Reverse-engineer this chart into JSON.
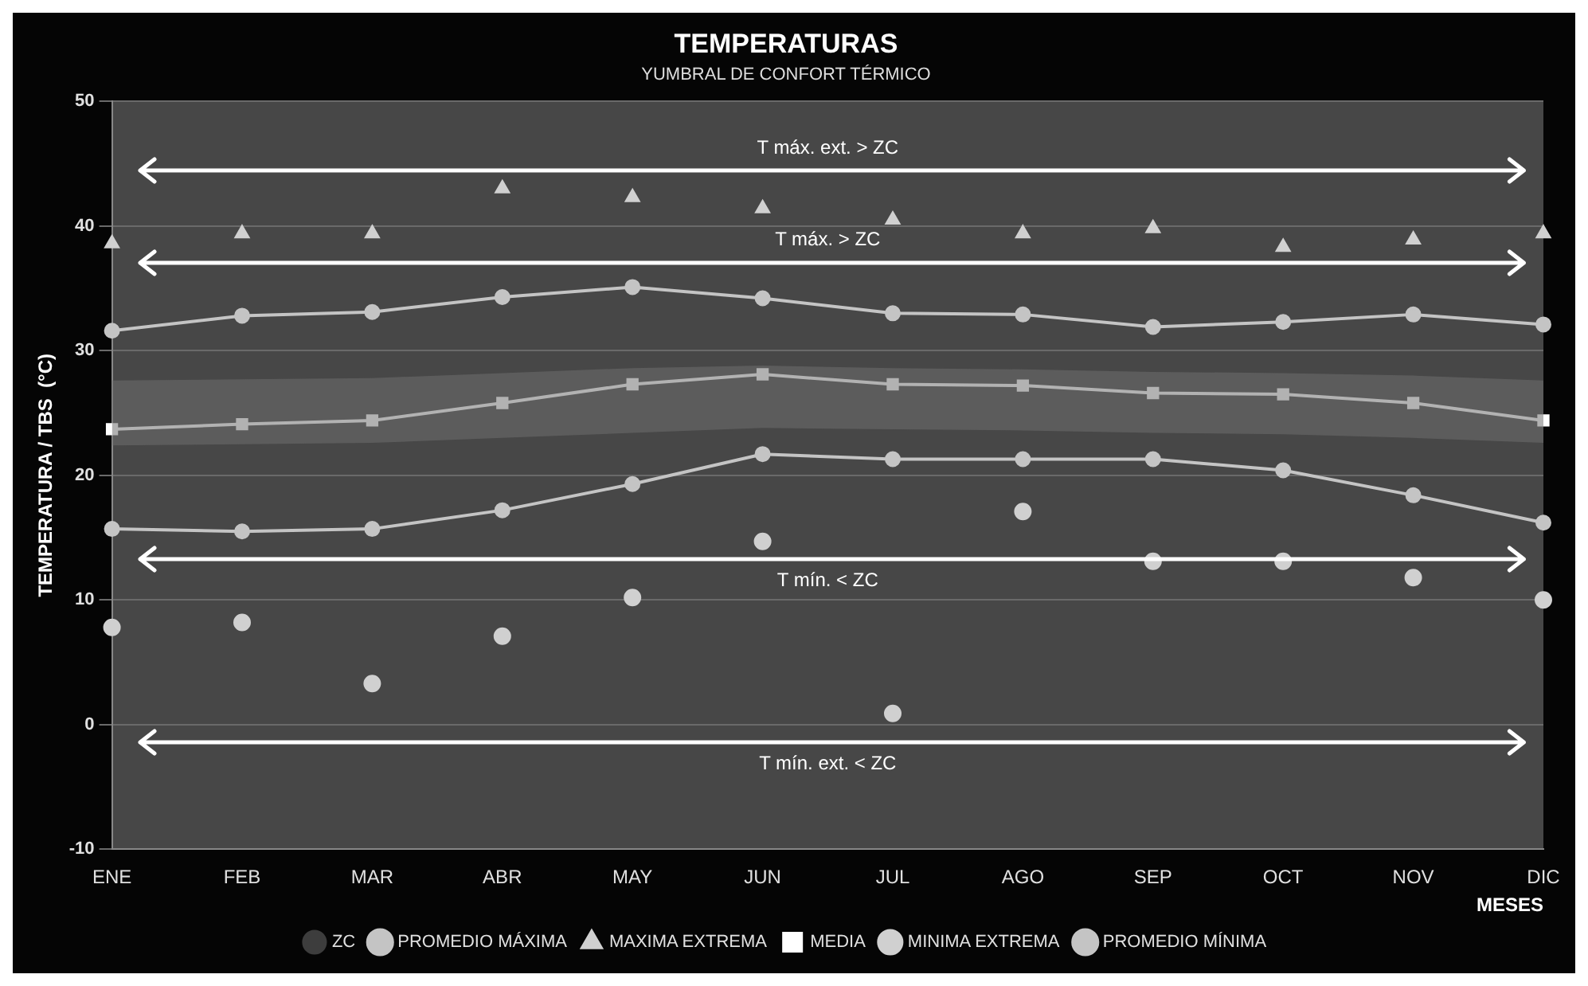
{
  "chart_data": {
    "type": "line",
    "title": "TEMPERATURAS",
    "subtitle": "YUMBRAL DE CONFORT TÉRMICO",
    "xlabel": "MESES",
    "ylabel": "TEMPERATURA / TBS  (°C)",
    "categories": [
      "ENE",
      "FEB",
      "MAR",
      "ABR",
      "MAY",
      "JUN",
      "JUL",
      "AGO",
      "SEP",
      "OCT",
      "NOV",
      "DIC"
    ],
    "series": [
      {
        "name": "ZC",
        "type": "area",
        "color": "#6e6e6e",
        "values": [
          null,
          null,
          null,
          null,
          null,
          null,
          null,
          null,
          null,
          null,
          null,
          null
        ],
        "lower": [
          22.4,
          22.5,
          22.6,
          23.0,
          23.4,
          23.8,
          23.7,
          23.6,
          23.4,
          23.3,
          23.0,
          22.6
        ],
        "upper": [
          27.6,
          27.7,
          27.8,
          28.2,
          28.6,
          28.8,
          28.6,
          28.5,
          28.3,
          28.2,
          28.0,
          27.6
        ]
      },
      {
        "name": "PROMEDIO MÁXIMA",
        "color": "#c4c4c4",
        "marker": "circle",
        "values": [
          31.6,
          32.8,
          33.1,
          34.3,
          35.1,
          34.2,
          33.0,
          32.9,
          31.9,
          32.3,
          32.9,
          32.1
        ]
      },
      {
        "name": "MAXIMA EXTREMA",
        "type": "scatter",
        "color": "#d0d0d0",
        "marker": "triangle",
        "values": [
          38.6,
          39.4,
          39.4,
          43.0,
          42.3,
          41.4,
          40.5,
          39.4,
          39.8,
          38.3,
          38.9,
          39.4
        ]
      },
      {
        "name": "MEDIA",
        "color": "#ffffff",
        "marker": "square",
        "values": [
          23.7,
          24.1,
          24.4,
          25.8,
          27.3,
          28.1,
          27.3,
          27.2,
          26.6,
          26.5,
          25.8,
          24.4
        ]
      },
      {
        "name": "MINIMA EXTREMA",
        "type": "scatter",
        "color": "#d0d0d0",
        "marker": "circle",
        "values": [
          7.8,
          8.2,
          3.3,
          7.1,
          10.2,
          14.7,
          0.9,
          17.1,
          13.1,
          13.1,
          11.8,
          10.0
        ]
      },
      {
        "name": "PROMEDIO MÍNIMA",
        "color": "#c4c4c4",
        "marker": "circle",
        "values": [
          15.7,
          15.5,
          15.7,
          17.2,
          19.3,
          21.7,
          21.3,
          21.3,
          21.3,
          20.4,
          18.4,
          16.2
        ]
      }
    ],
    "ref_lines": [
      {
        "axis": "y",
        "value": 44.4,
        "label": "T máx. ext. > ZC",
        "color": "#ffffff"
      },
      {
        "axis": "y",
        "value": 37.1,
        "label": "T máx. > ZC",
        "color": "#ffffff"
      },
      {
        "axis": "y",
        "value": 13.3,
        "label": "T mín. < ZC",
        "color": "#ffffff"
      },
      {
        "axis": "y",
        "value": -1.4,
        "label": "T mín. ext. < ZC",
        "color": "#ffffff"
      }
    ],
    "ylim": [
      -10,
      50
    ],
    "yticks": [
      -10,
      0,
      10,
      20,
      30,
      40,
      50
    ],
    "grid": "y",
    "legend": "bottom"
  }
}
